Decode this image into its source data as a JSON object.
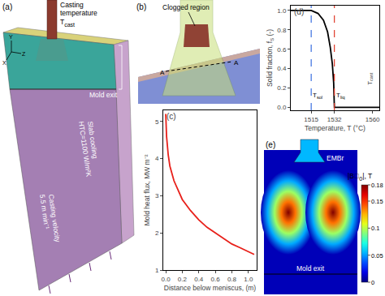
{
  "panels": {
    "a": {
      "label": "(a)",
      "nozzle_note": [
        "Casting",
        "temperature"
      ],
      "nozzle_symbol": [
        "T",
        {
          "sub": "cast"
        }
      ],
      "mold_exit": "Mold exit",
      "slab_note": [
        "Slab cooling",
        "HTC=1100 W/m²K"
      ],
      "velocity_note": [
        "Casting velocity",
        "5.5 m min⁻¹"
      ],
      "axes": [
        "Y",
        "Z",
        "X"
      ]
    },
    "b": {
      "label": "(b)",
      "clog": "Clogged region",
      "section": [
        "A",
        "A"
      ]
    },
    "c": {
      "label": "(c)"
    },
    "d": {
      "label": "(d)"
    },
    "e": {
      "label": "(e)",
      "embr": "EMBr",
      "mold_exit": "Mold exit",
      "colorbar": {
        "title": [
          "|B⃗",
          {
            "sub": "0"
          },
          "|, T"
        ],
        "range": [
          0,
          0.18
        ],
        "ticks": [
          0,
          0.05,
          0.1,
          0.15,
          0.18
        ]
      },
      "field_peak": 0.18,
      "field_floor": 0.01
    }
  },
  "chart_data": [
    {
      "type": "line",
      "xlabel": "Distance below meniscus, (m)",
      "ylabel": "Mold heat flux, MW m⁻²",
      "x": [
        0,
        0.01,
        0.03,
        0.05,
        0.1,
        0.2,
        0.3,
        0.4,
        0.5,
        0.6,
        0.7,
        0.8,
        0.9,
        1.0,
        1.07
      ],
      "series": [
        {
          "color": "#e8201a",
          "values": [
            5.2,
            4.6,
            4.1,
            3.8,
            3.4,
            2.9,
            2.6,
            2.35,
            2.15,
            2.0,
            1.85,
            1.7,
            1.6,
            1.5,
            1.42
          ]
        }
      ],
      "xlim": [
        -0.03,
        1.1
      ],
      "xticks": [
        {
          "value": 0,
          "label": "0.0"
        },
        0.2,
        0.4,
        0.6,
        0.8,
        {
          "value": 1,
          "label": "1.0"
        }
      ],
      "ylim": [
        1,
        5.3
      ],
      "yticks": [
        1,
        2,
        3,
        4,
        5
      ]
    },
    {
      "type": "line",
      "xlabel": "Temperature, T (°C)",
      "ylabel": [
        "Solid fraction, f",
        {
          "sub": "S"
        },
        " (-)"
      ],
      "x": [
        1500,
        1515,
        1520,
        1524,
        1527,
        1529,
        1530.5,
        1531.5,
        1532,
        1565
      ],
      "series": [
        {
          "color": "#000000",
          "values": [
            1,
            1,
            0.97,
            0.9,
            0.78,
            0.62,
            0.45,
            0.25,
            0,
            0
          ]
        }
      ],
      "xlim": [
        1500,
        1565
      ],
      "xticks": [
        1515,
        1532,
        1560
      ],
      "ylim": [
        -0.03,
        1.05
      ],
      "yticks": [
        {
          "value": 0,
          "label": "0.0"
        },
        {
          "value": 0.2,
          "label": "0.2"
        },
        {
          "value": 0.4,
          "label": "0.4"
        },
        {
          "value": 0.6,
          "label": "0.6"
        },
        {
          "value": 0.8,
          "label": "0.8"
        },
        {
          "value": 1,
          "label": "1.0"
        }
      ],
      "vlines": [
        {
          "x": 1515,
          "color": "#3a6fe0",
          "line_style": "dashed",
          "label": [
            "T",
            {
              "sub": "sol"
            }
          ]
        },
        {
          "x": 1532,
          "color": "#e03a2a",
          "line_style": "dashed",
          "label": [
            "T",
            {
              "sub": "liq"
            }
          ]
        }
      ],
      "annotations": [
        {
          "x": 1558,
          "y": 0.3,
          "text": [
            "T",
            {
              "sub": "cast"
            }
          ]
        }
      ]
    }
  ]
}
